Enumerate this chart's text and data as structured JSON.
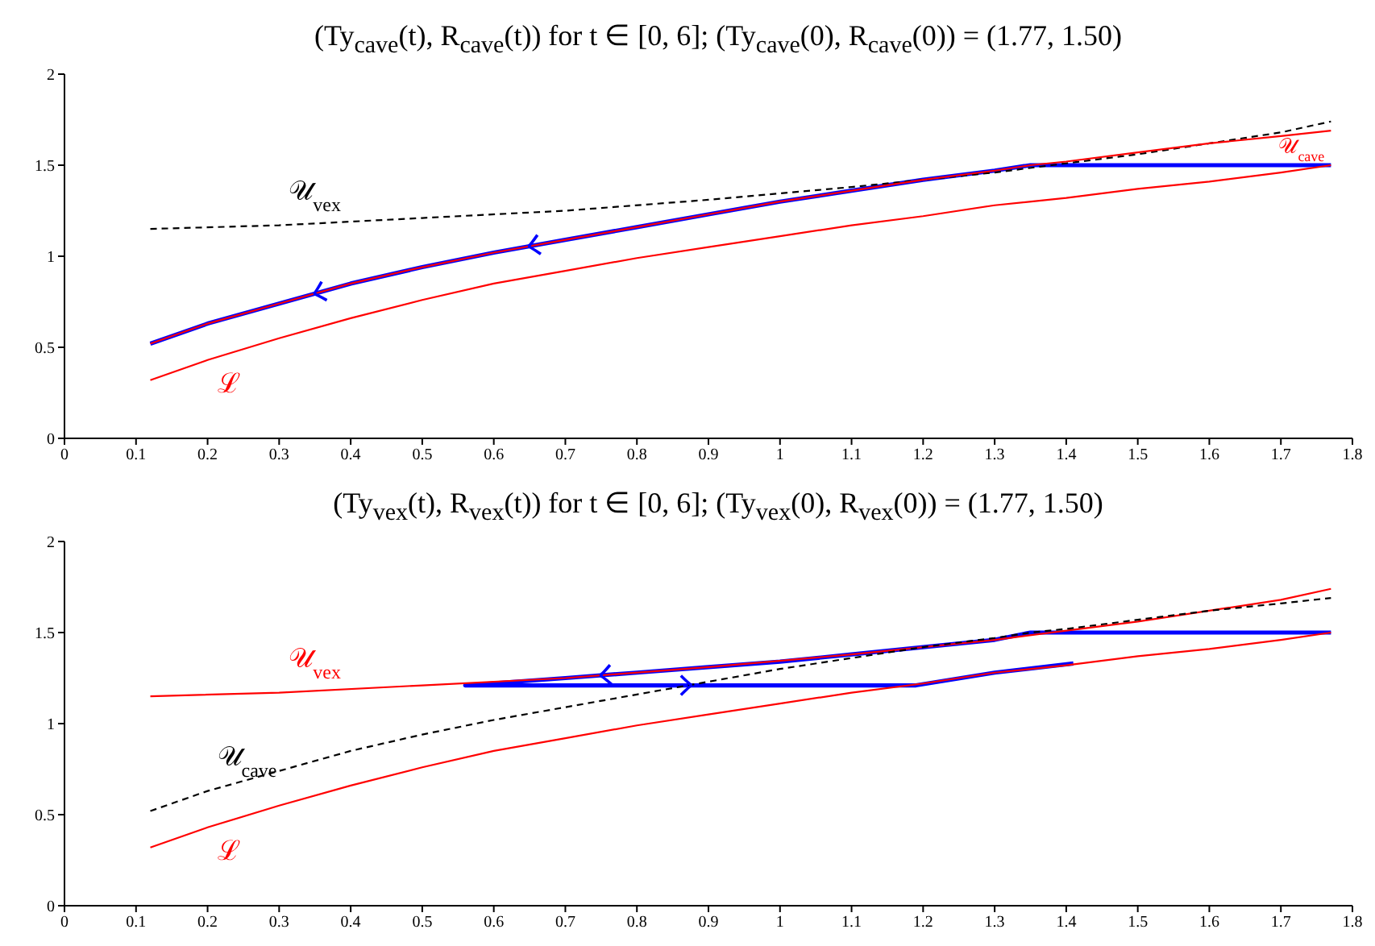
{
  "chart_data": [
    {
      "type": "line",
      "title": "(Ty$_{cave}$(t), R$_{cave}$(t)) for t ∈ [0, 6]; (Ty$_{cave}$(0), R$_{cave}$(0)) = (1.77, 1.50)",
      "xlim": [
        0,
        1.8
      ],
      "xticks": [
        0,
        0.1,
        0.2,
        0.3,
        0.4,
        0.5,
        0.6,
        0.7,
        0.8,
        0.9,
        1,
        1.1,
        1.2,
        1.3,
        1.4,
        1.5,
        1.6,
        1.7,
        1.8
      ],
      "ylim": [
        0,
        2
      ],
      "yticks": [
        0,
        0.5,
        1,
        1.5,
        2
      ],
      "series": [
        {
          "name": "ℒ",
          "color": "#ff0000",
          "line_style": "solid",
          "x": [
            0.12,
            0.2,
            0.3,
            0.4,
            0.5,
            0.6,
            0.7,
            0.8,
            0.9,
            1.0,
            1.1,
            1.2,
            1.3,
            1.4,
            1.5,
            1.6,
            1.7,
            1.77
          ],
          "values": [
            0.32,
            0.43,
            0.55,
            0.66,
            0.76,
            0.85,
            0.92,
            0.99,
            1.05,
            1.11,
            1.17,
            1.22,
            1.28,
            1.32,
            1.37,
            1.41,
            1.46,
            1.5
          ]
        },
        {
          "name": "𝒰$_{vex}$",
          "color": "#000000",
          "line_style": "dashed",
          "x": [
            0.12,
            0.3,
            0.5,
            0.7,
            0.9,
            1.1,
            1.3,
            1.5,
            1.7,
            1.77
          ],
          "values": [
            1.15,
            1.17,
            1.21,
            1.25,
            1.31,
            1.38,
            1.46,
            1.56,
            1.68,
            1.74
          ]
        },
        {
          "name": "𝒰$_{cave}$",
          "color": "#ff0000",
          "line_style": "solid",
          "x": [
            0.12,
            0.2,
            0.3,
            0.4,
            0.5,
            0.6,
            0.7,
            0.8,
            0.9,
            1.0,
            1.1,
            1.2,
            1.3,
            1.35,
            1.4,
            1.5,
            1.6,
            1.7,
            1.77
          ],
          "values": [
            0.52,
            0.63,
            0.74,
            0.85,
            0.94,
            1.02,
            1.09,
            1.16,
            1.23,
            1.3,
            1.36,
            1.42,
            1.47,
            1.5,
            1.52,
            1.57,
            1.62,
            1.66,
            1.69
          ]
        },
        {
          "color": "#0000ff",
          "line_style": "solid",
          "x": [
            1.77,
            1.35,
            1.3,
            1.2,
            1.1,
            1.0,
            0.9,
            0.8,
            0.7,
            0.6,
            0.5,
            0.4,
            0.3,
            0.2,
            0.12
          ],
          "values": [
            1.5,
            1.5,
            1.47,
            1.42,
            1.36,
            1.3,
            1.23,
            1.16,
            1.09,
            1.02,
            0.94,
            0.85,
            0.74,
            0.63,
            0.52
          ]
        }
      ]
    },
    {
      "type": "line",
      "title": "(Ty$_{vex}$(t), R$_{vex}$(t)) for t ∈ [0, 6]; (Ty$_{vex}$(0), R$_{vex}$(0)) = (1.77, 1.50)",
      "xlim": [
        0,
        1.8
      ],
      "xticks": [
        0,
        0.1,
        0.2,
        0.3,
        0.4,
        0.5,
        0.6,
        0.7,
        0.8,
        0.9,
        1,
        1.1,
        1.2,
        1.3,
        1.4,
        1.5,
        1.6,
        1.7,
        1.8
      ],
      "ylim": [
        0,
        2
      ],
      "yticks": [
        0,
        0.5,
        1,
        1.5,
        2
      ],
      "series": [
        {
          "name": "ℒ",
          "color": "#ff0000",
          "line_style": "solid",
          "x": [
            0.12,
            0.2,
            0.3,
            0.4,
            0.5,
            0.6,
            0.7,
            0.8,
            0.9,
            1.0,
            1.1,
            1.2,
            1.3,
            1.4,
            1.5,
            1.6,
            1.7,
            1.77
          ],
          "values": [
            0.32,
            0.43,
            0.55,
            0.66,
            0.76,
            0.85,
            0.92,
            0.99,
            1.05,
            1.11,
            1.17,
            1.22,
            1.28,
            1.32,
            1.37,
            1.41,
            1.46,
            1.5
          ]
        },
        {
          "name": "𝒰$_{vex}$",
          "color": "#ff0000",
          "line_style": "solid",
          "x": [
            0.12,
            0.3,
            0.5,
            0.7,
            0.9,
            1.1,
            1.3,
            1.5,
            1.7,
            1.77
          ],
          "values": [
            1.15,
            1.17,
            1.21,
            1.25,
            1.31,
            1.38,
            1.46,
            1.56,
            1.68,
            1.74
          ]
        },
        {
          "name": "𝒰$_{cave}$",
          "color": "#000000",
          "line_style": "dashed",
          "x": [
            0.12,
            0.2,
            0.3,
            0.4,
            0.5,
            0.6,
            0.7,
            0.8,
            0.9,
            1.0,
            1.1,
            1.2,
            1.3,
            1.35,
            1.4,
            1.5,
            1.6,
            1.7,
            1.77
          ],
          "values": [
            0.52,
            0.63,
            0.74,
            0.85,
            0.94,
            1.02,
            1.09,
            1.16,
            1.23,
            1.3,
            1.36,
            1.42,
            1.47,
            1.5,
            1.52,
            1.57,
            1.62,
            1.66,
            1.69
          ]
        },
        {
          "color": "#0000ff",
          "line_style": "solid",
          "x": [
            1.77,
            1.35,
            1.3,
            1.2,
            1.1,
            1.0,
            0.9,
            0.8,
            0.7,
            0.56,
            1.19,
            1.3,
            1.41
          ],
          "values": [
            1.5,
            1.5,
            1.46,
            1.42,
            1.38,
            1.34,
            1.31,
            1.28,
            1.25,
            1.21,
            1.21,
            1.28,
            1.33
          ]
        }
      ]
    }
  ]
}
